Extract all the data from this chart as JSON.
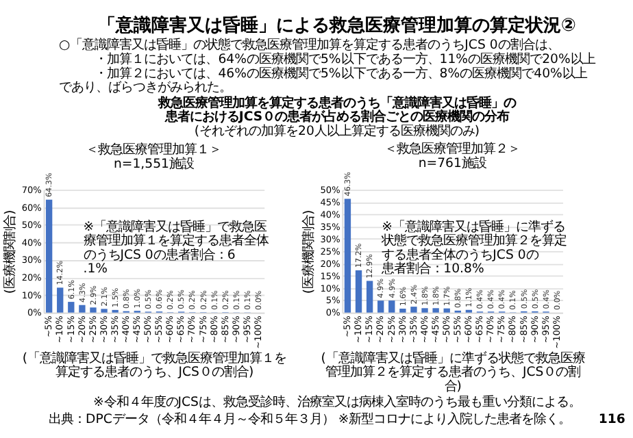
{
  "chart_data": [
    {
      "type": "other",
      "title": "「意識障害又は昏睡」による救急医療管理加算の算定状況②",
      "annotations": [
        "○「意識障害又は昏睡」の状態で救急医療管理加算を算定する患者のうちJCS 0の割合は、",
        "・加算１においては、64%の医療機関で5%以下である一方、11%の医療機関で20%以上",
        "・加算２においては、46%の医療機関で5%以下である一方、8%の医療機関で40%以上",
        "であり、ばらつきがみられた。",
        "救急医療管理加算を算定する患者のうち「意識障害又は昏睡」の",
        "患者におけるJCS０の患者が占める割合ごとの医療機関の分布",
        "(それぞれの加算を20人以上算定する医療機関のみ)"
      ]
    },
    {
      "type": "bar",
      "title": "＜救急医療管理加算１＞",
      "subtitle": "n=1,551施設",
      "ylabel": "(医療機関割合)",
      "xlabel": "(「意識障害又は昏睡」で救急医療管理加算１を算定する患者のうち、JCS０の割合)",
      "categories": [
        "~5%",
        "~10%",
        "~15%",
        "~20%",
        "~25%",
        "~30%",
        "~35%",
        "~40%",
        "~45%",
        "~50%",
        "~55%",
        "~60%",
        "~65%",
        "~70%",
        "~75%",
        "~80%",
        "~85%",
        "~90%",
        "~95%",
        "~100%"
      ],
      "series": [
        {
          "color": "#4472c4",
          "values": [
            64.3,
            14.2,
            6.1,
            4.3,
            2.9,
            2.1,
            1.5,
            0.8,
            1.0,
            0.5,
            0.6,
            0.2,
            0.5,
            0.2,
            0.2,
            0.1,
            0.2,
            0.1,
            0.1,
            0.0
          ],
          "value_labels": [
            "64.3%",
            "14.2%",
            "6.1%",
            "4.3%",
            "2.9%",
            "2.1%",
            "1.5%",
            "0.8%",
            "1.0%",
            "0.5%",
            "0.6%",
            "0.2%",
            "0.5%",
            "0.2%",
            "0.2%",
            "0.1%",
            "0.2%",
            "0.1%",
            "0.1%",
            "0.0%"
          ]
        }
      ],
      "ylim": [
        0,
        70
      ],
      "yticks": [
        {
          "value": 0,
          "label": "0%"
        },
        {
          "value": 10,
          "label": "10%"
        },
        {
          "value": 20,
          "label": "20%"
        },
        {
          "value": 30,
          "label": "30%"
        },
        {
          "value": 40,
          "label": "40%"
        },
        {
          "value": 50,
          "label": "50%"
        },
        {
          "value": 60,
          "label": "60%"
        },
        {
          "value": 70,
          "label": "70%"
        }
      ],
      "grid": "y",
      "annotations": [
        "※「意識障害又は昏睡」で救急医療管理加算１を算定する患者全体のうちJCS 0の患者割合：6.1%"
      ]
    },
    {
      "type": "bar",
      "title": "＜救急医療管理加算２＞",
      "subtitle": "n=761施設",
      "ylabel": "(医療機関割合)",
      "xlabel": "(「意識障害又は昏睡」に準ずる状態で救急医療管理加算２を算定する患者のうち、JCS０の割合)",
      "categories": [
        "~5%",
        "~10%",
        "~15%",
        "~20%",
        "~25%",
        "~30%",
        "~35%",
        "~40%",
        "~45%",
        "~50%",
        "~55%",
        "~60%",
        "~65%",
        "~70%",
        "~75%",
        "~80%",
        "~85%",
        "~90%",
        "~95%",
        "~100%"
      ],
      "series": [
        {
          "color": "#4472c4",
          "values": [
            46.3,
            17.2,
            12.9,
            4.9,
            4.9,
            1.6,
            2.4,
            1.8,
            1.8,
            1.7,
            0.8,
            1.1,
            0.4,
            0.4,
            0.4,
            0.1,
            0.5,
            0.5,
            0.4,
            0.0
          ],
          "value_labels": [
            "46.3%",
            "17.2%",
            "12.9%",
            "4.9%",
            "4.9%",
            "1.6%",
            "2.4%",
            "1.8%",
            "1.8%",
            "1.7%",
            "0.8%",
            "1.1%",
            "0.4%",
            "0.4%",
            "0.4%",
            "0.1%",
            "0.5%",
            "0.5%",
            "0.4%",
            "0.0%"
          ]
        }
      ],
      "ylim": [
        0,
        50
      ],
      "yticks": [
        {
          "value": 0,
          "label": "0%"
        },
        {
          "value": 5,
          "label": "5%"
        },
        {
          "value": 10,
          "label": "10%"
        },
        {
          "value": 15,
          "label": "15%"
        },
        {
          "value": 20,
          "label": "20%"
        },
        {
          "value": 25,
          "label": "25%"
        },
        {
          "value": 30,
          "label": "30%"
        },
        {
          "value": 35,
          "label": "35%"
        },
        {
          "value": 40,
          "label": "40%"
        },
        {
          "value": 45,
          "label": "45%"
        },
        {
          "value": 50,
          "label": "50%"
        }
      ],
      "grid": "y",
      "annotations": [
        "※「意識障害又は昏睡」に準ずる状態で救急医療管理加算２を算定する患者全体のうちJCS 0の患者割合：10.8%"
      ]
    },
    {
      "type": "other",
      "annotations": [
        "※令和４年度のJCSは、救急受診時、治療室又は病棟入室時のうち最も重い分類による。",
        "出典：DPCデータ（令和４年４月～令和５年３月） ※新型コロナにより入院した患者を除く。",
        "116"
      ]
    }
  ]
}
